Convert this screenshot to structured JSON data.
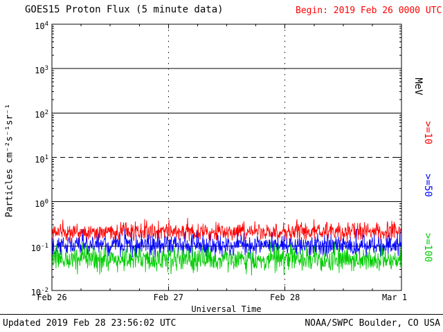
{
  "header": {
    "title": "GOES15 Proton Flux (5 minute data)",
    "begin_label": "Begin: 2019 Feb 26 0000 UTC",
    "begin_color": "#ff0000"
  },
  "axes": {
    "ylabel": "Particles cm⁻²s⁻¹sr⁻¹",
    "xlabel": "Universal Time",
    "y_exponents": [
      4,
      3,
      2,
      1,
      0,
      -1,
      -2
    ],
    "x_ticks": [
      {
        "label": "Feb 26",
        "f": 0
      },
      {
        "label": "Feb 27",
        "f": 0.3333
      },
      {
        "label": "Feb 28",
        "f": 0.6667
      },
      {
        "label": "Mar 1",
        "f": 1,
        "dx": -10
      }
    ]
  },
  "right_labels": {
    "unit": "MeV",
    "series": [
      {
        "label": ">=10",
        "color": "#ff0000"
      },
      {
        "label": ">=50",
        "color": "#0000ff"
      },
      {
        "label": ">=100",
        "color": "#00cc00"
      }
    ]
  },
  "footer": {
    "updated": "Updated 2019 Feb 28 23:56:02 UTC",
    "credit": "NOAA/SWPC Boulder, CO USA"
  },
  "chart_data": {
    "type": "line",
    "title": "GOES15 Proton Flux (5 minute data)",
    "xlabel": "Universal Time",
    "ylabel": "Particles cm^-2 s^-1 sr^-1",
    "y_scale": "log10",
    "ylim": [
      0.01,
      10000
    ],
    "x_start": "2019 Feb 26 0000 UTC",
    "x_end": "2019 Mar 1 0000 UTC",
    "x_tick_labels": [
      "Feb 26",
      "Feb 27",
      "Feb 28",
      "Mar 1"
    ],
    "cadence_minutes": 5,
    "points_per_series": 864,
    "legend_position": "right",
    "gridlines": {
      "horizontal_solid": [
        1000,
        100,
        1,
        0.1
      ],
      "horizontal_dashed": [
        10
      ],
      "vertical_dotted_fractions": [
        0.3333,
        0.6667
      ]
    },
    "series": [
      {
        "name": "Protons >=10 MeV",
        "color": "#ff0000",
        "baseline": 0.21,
        "approx_range": [
          0.12,
          0.5
        ],
        "log_sigma": 0.1,
        "spike_prob": 0.02,
        "spike_factor": 1.4,
        "seed": 11
      },
      {
        "name": "Protons >=50 MeV",
        "color": "#0000ff",
        "baseline": 0.105,
        "approx_range": [
          0.05,
          0.3
        ],
        "log_sigma": 0.12,
        "spike_prob": 0.015,
        "spike_factor": 1.4,
        "seed": 22
      },
      {
        "name": "Protons >=100 MeV",
        "color": "#00cc00",
        "baseline": 0.05,
        "approx_range": [
          0.025,
          0.15
        ],
        "log_sigma": 0.14,
        "spike_prob": 0.015,
        "spike_factor": 1.4,
        "seed": 33
      }
    ]
  }
}
